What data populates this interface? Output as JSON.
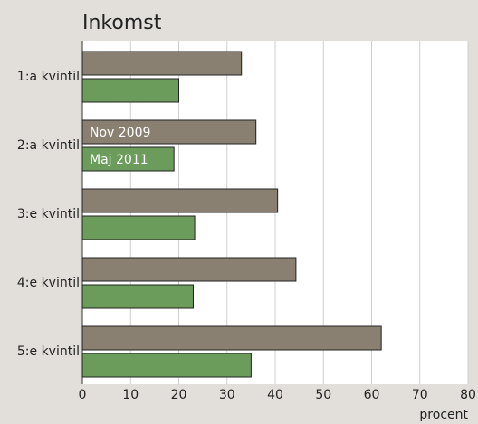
{
  "chart_data": {
    "type": "barh",
    "title": "Inkomst",
    "x_label": "procent",
    "categories": [
      "1:a kvintil",
      "2:a kvintil",
      "3:e kvintil",
      "4:e kvintil",
      "5:e kvintil"
    ],
    "series": [
      {
        "name": "Nov 2009",
        "color": "#8a8071",
        "values": [
          33,
          36,
          40.5,
          44.3,
          62
        ]
      },
      {
        "name": "Maj 2011",
        "color": "#6b9c5b",
        "values": [
          20,
          19,
          23.3,
          23,
          35
        ]
      }
    ],
    "xlim": [
      0,
      80
    ],
    "xticks": [
      0,
      10,
      20,
      30,
      40,
      50,
      60,
      70,
      80
    ],
    "grid": true,
    "legend": "inside"
  }
}
